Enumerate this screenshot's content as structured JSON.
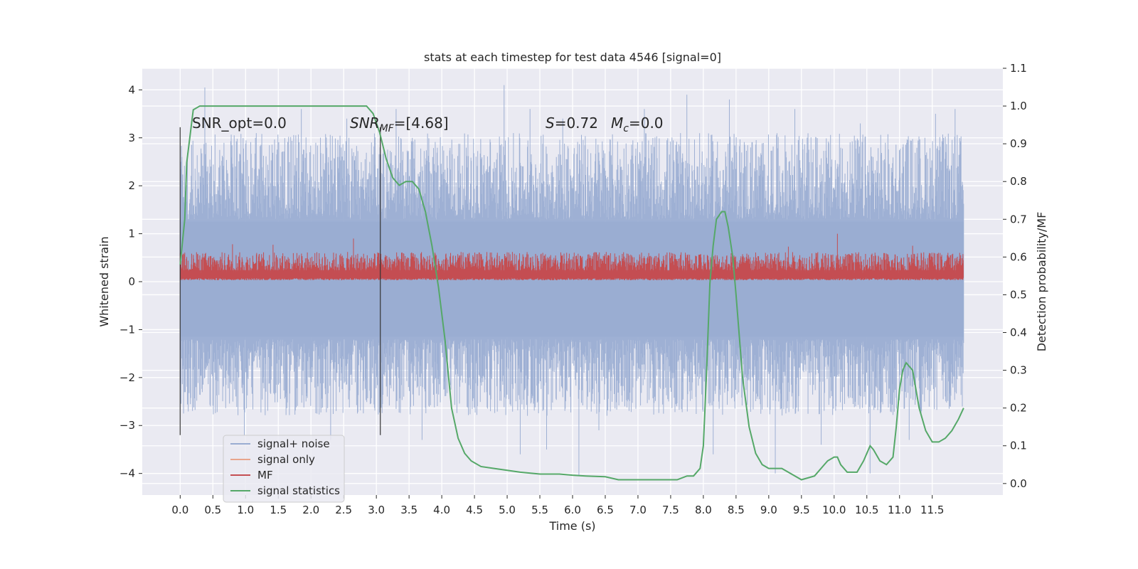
{
  "chart_data": {
    "type": "line",
    "title": "stats at each timestep for test data 4546 [signal=0]",
    "xlabel": "Time (s)",
    "ylabel": "Whitened strain",
    "y2label": "Detection probability/MF",
    "xlim": [
      -0.58,
      12.58
    ],
    "ylim": [
      -4.45,
      4.45
    ],
    "y2lim": [
      -0.0305,
      1.1
    ],
    "x_ticks": [
      0.0,
      0.5,
      1.0,
      1.5,
      2.0,
      2.5,
      3.0,
      3.5,
      4.0,
      4.5,
      5.0,
      5.5,
      6.0,
      6.5,
      7.0,
      7.5,
      8.0,
      8.5,
      9.0,
      9.5,
      10.0,
      10.5,
      11.0,
      11.5
    ],
    "x_tick_labels": [
      "0.0",
      "0.5",
      "1.0",
      "1.5",
      "2.0",
      "2.5",
      "3.0",
      "3.5",
      "4.0",
      "4.5",
      "5.0",
      "5.5",
      "6.0",
      "6.5",
      "7.0",
      "7.5",
      "8.0",
      "8.5",
      "9.0",
      "9.5",
      "10.0",
      "10.5",
      "11.0",
      "11.5"
    ],
    "y_ticks": [
      -4,
      -3,
      -2,
      -1,
      0,
      1,
      2,
      3,
      4
    ],
    "y_tick_labels": [
      "−4",
      "−3",
      "−2",
      "−1",
      "0",
      "1",
      "2",
      "3",
      "4"
    ],
    "y2_ticks": [
      0.0,
      0.1,
      0.2,
      0.3,
      0.4,
      0.5,
      0.6,
      0.7,
      0.8,
      0.9,
      1.0,
      1.1
    ],
    "y2_tick_labels": [
      "0.0",
      "0.1",
      "0.2",
      "0.3",
      "0.4",
      "0.5",
      "0.6",
      "0.7",
      "0.8",
      "0.9",
      "1.0",
      "1.1"
    ],
    "grid": true,
    "legend_position": "lower-left",
    "annotations": {
      "snr_opt": "SNR_opt=0.0",
      "snr_mf_name": "SNR",
      "snr_mf_sub": "MF",
      "snr_mf_value": "=[4.68]",
      "s_name": "S",
      "s_value": "=0.72",
      "mc_name": "M",
      "mc_sub": "c",
      "mc_value": "=0.0"
    },
    "vlines": [
      0.0,
      3.06
    ],
    "noise_envelope": {
      "x_range": [
        0.0,
        11.98
      ],
      "typical_upper": 2.5,
      "typical_lower": -2.2,
      "peaks_upper": [
        [
          0.38,
          4.05
        ],
        [
          1.85,
          3.6
        ],
        [
          2.55,
          3.4
        ],
        [
          3.3,
          3.6
        ],
        [
          4.95,
          4.1
        ],
        [
          5.35,
          3.6
        ],
        [
          5.85,
          3.4
        ],
        [
          7.1,
          3.6
        ],
        [
          7.75,
          3.9
        ],
        [
          8.4,
          3.8
        ],
        [
          9.4,
          3.6
        ],
        [
          10.4,
          3.3
        ],
        [
          11.55,
          3.5
        ],
        [
          11.85,
          3.6
        ]
      ],
      "peaks_lower": [
        [
          0.05,
          -2.75
        ],
        [
          0.98,
          -3.2
        ],
        [
          2.3,
          -3.3
        ],
        [
          3.7,
          -3.3
        ],
        [
          5.2,
          -3.6
        ],
        [
          5.6,
          -3.5
        ],
        [
          6.1,
          -4.05
        ],
        [
          6.4,
          -3.1
        ],
        [
          8.15,
          -3.6
        ],
        [
          9.1,
          -4.0
        ],
        [
          9.8,
          -3.4
        ],
        [
          10.55,
          -4.0
        ],
        [
          11.15,
          -3.3
        ]
      ]
    },
    "mf_band": {
      "x_range": [
        0.0,
        11.98
      ],
      "lower": 0.03,
      "typical_upper": 0.62,
      "peaks": [
        [
          0.8,
          0.78
        ],
        [
          1.42,
          0.77
        ],
        [
          2.65,
          0.9
        ],
        [
          9.3,
          0.73
        ],
        [
          10.05,
          1.0
        ],
        [
          11.2,
          0.75
        ]
      ]
    },
    "series": [
      {
        "name": "signal+ noise",
        "color": "#9aadd2",
        "axis": "left",
        "style": "dense-band"
      },
      {
        "name": "signal only",
        "color": "#e8a58c",
        "axis": "left",
        "x": [],
        "y": []
      },
      {
        "name": "MF",
        "color": "#c44e52",
        "axis": "left",
        "style": "dense-band"
      },
      {
        "name": "signal statistics",
        "color": "#55a868",
        "axis": "right",
        "x": [
          0.0,
          0.07,
          0.1,
          0.15,
          0.2,
          0.3,
          0.5,
          1.0,
          2.0,
          2.5,
          2.7,
          2.85,
          2.95,
          3.05,
          3.15,
          3.25,
          3.35,
          3.45,
          3.55,
          3.65,
          3.75,
          3.85,
          3.95,
          4.05,
          4.15,
          4.25,
          4.35,
          4.45,
          4.6,
          4.8,
          5.0,
          5.2,
          5.5,
          5.8,
          6.0,
          6.2,
          6.5,
          6.7,
          7.0,
          7.2,
          7.4,
          7.6,
          7.75,
          7.85,
          7.95,
          8.0,
          8.05,
          8.1,
          8.15,
          8.2,
          8.28,
          8.33,
          8.38,
          8.45,
          8.5,
          8.6,
          8.7,
          8.8,
          8.9,
          9.0,
          9.2,
          9.5,
          9.7,
          9.85,
          9.9,
          10.0,
          10.05,
          10.1,
          10.2,
          10.35,
          10.45,
          10.55,
          10.6,
          10.7,
          10.8,
          10.9,
          10.95,
          11.0,
          11.05,
          11.1,
          11.2,
          11.3,
          11.4,
          11.5,
          11.6,
          11.7,
          11.8,
          11.9,
          11.98
        ],
        "y": [
          0.58,
          0.7,
          0.85,
          0.92,
          0.99,
          1.0,
          1.0,
          1.0,
          1.0,
          1.0,
          1.0,
          1.0,
          0.98,
          0.93,
          0.86,
          0.81,
          0.79,
          0.8,
          0.8,
          0.78,
          0.72,
          0.63,
          0.52,
          0.38,
          0.2,
          0.12,
          0.08,
          0.06,
          0.045,
          0.04,
          0.035,
          0.03,
          0.025,
          0.025,
          0.022,
          0.02,
          0.018,
          0.01,
          0.01,
          0.01,
          0.01,
          0.01,
          0.02,
          0.02,
          0.04,
          0.1,
          0.3,
          0.53,
          0.63,
          0.7,
          0.72,
          0.72,
          0.68,
          0.6,
          0.5,
          0.28,
          0.15,
          0.08,
          0.05,
          0.04,
          0.04,
          0.01,
          0.02,
          0.05,
          0.06,
          0.07,
          0.07,
          0.05,
          0.03,
          0.03,
          0.06,
          0.1,
          0.09,
          0.06,
          0.05,
          0.07,
          0.15,
          0.25,
          0.3,
          0.32,
          0.3,
          0.2,
          0.14,
          0.11,
          0.11,
          0.12,
          0.14,
          0.17,
          0.2
        ]
      }
    ]
  }
}
